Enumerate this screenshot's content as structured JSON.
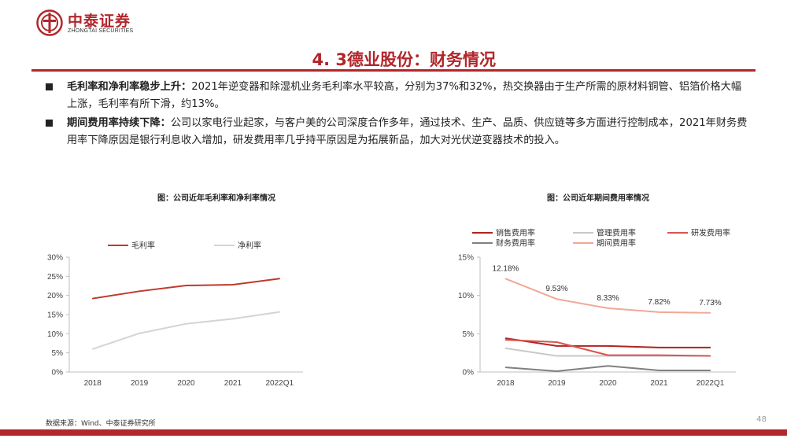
{
  "header": {
    "brand_cn": "中泰证券",
    "brand_en": "ZHONGTAI SECURITIES",
    "logo_icon": "zhongtai-logo-icon",
    "accent_color": "#b3262b"
  },
  "slide": {
    "title": "4. 3德业股份：财务情况",
    "bullets": [
      {
        "bold": "毛利率和净利率稳步上升：",
        "text": "2021年逆变器和除湿机业务毛利率水平较高，分别为37%和32%，热交换器由于生产所需的原材料铜管、铝箔价格大幅上涨，毛利率有所下滑，约13%。"
      },
      {
        "bold": "期间费用率持续下降：",
        "text": "公司以家电行业起家，与客户美的公司深度合作多年，通过技术、生产、品质、供应链等多方面进行控制成本，2021年财务费用率下降原因是银行利息收入增加，研发费用率几乎持平原因是为拓展新品，加大对光伏逆变器技术的投入。"
      }
    ]
  },
  "chart_data": [
    {
      "type": "line",
      "title": "图：公司近年毛利率和净利率情况",
      "categories": [
        "2018",
        "2019",
        "2020",
        "2021",
        "2022Q1"
      ],
      "yticks": [
        "0%",
        "5%",
        "10%",
        "15%",
        "20%",
        "25%",
        "30%"
      ],
      "ylim": [
        0,
        30
      ],
      "legend_position": "top",
      "series": [
        {
          "name": "毛利率",
          "color": "#c0392b",
          "values": [
            19.2,
            21.1,
            22.6,
            22.8,
            24.4
          ]
        },
        {
          "name": "净利率",
          "color": "#d4d4d4",
          "values": [
            6.0,
            10.1,
            12.6,
            13.9,
            15.7
          ]
        }
      ]
    },
    {
      "type": "line",
      "title": "图：公司近年期间费用率情况",
      "categories": [
        "2018",
        "2019",
        "2020",
        "2021",
        "2022Q1"
      ],
      "yticks": [
        "0%",
        "5%",
        "10%",
        "15%"
      ],
      "ylim": [
        0,
        15
      ],
      "legend_position": "top",
      "series": [
        {
          "name": "销售费用率",
          "color": "#b22222",
          "values": [
            4.4,
            3.4,
            3.4,
            3.2,
            3.2
          ]
        },
        {
          "name": "管理费用率",
          "color": "#c8c8c8",
          "values": [
            3.1,
            2.1,
            2.1,
            2.1,
            2.1
          ]
        },
        {
          "name": "研发费用率",
          "color": "#d9534f",
          "values": [
            4.2,
            3.9,
            2.2,
            2.2,
            2.1
          ]
        },
        {
          "name": "财务费用率",
          "color": "#808080",
          "values": [
            0.6,
            0.1,
            0.8,
            0.2,
            0.2
          ]
        },
        {
          "name": "期间费用率",
          "color": "#f1a898",
          "values": [
            12.18,
            9.53,
            8.33,
            7.82,
            7.73
          ],
          "labels": [
            "12.18%",
            "9.53%",
            "8.33%",
            "7.82%",
            "7.73%"
          ]
        }
      ]
    }
  ],
  "footer": {
    "source": "数据来源：Wind、中泰证券研究所",
    "page_number": "48"
  }
}
